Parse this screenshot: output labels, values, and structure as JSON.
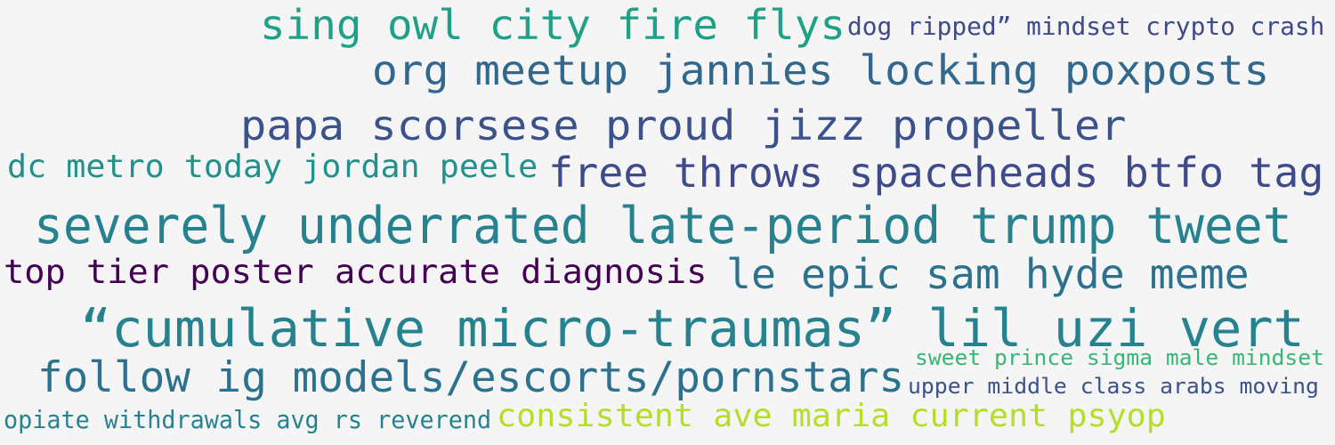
{
  "palette": {
    "background": "#f5f5f5",
    "dark_purple": "#440154",
    "indigo": "#3e4a89",
    "slate_blue": "#3b528b",
    "deep_blue": "#31688e",
    "steel_teal": "#2c728e",
    "teal": "#26828e",
    "sea_teal": "#21918c",
    "jade": "#1fa187",
    "green": "#35b779",
    "lime": "#b5de2b"
  },
  "phrases": [
    {
      "text": "sing owl city fire flys",
      "color": "#1fa187"
    },
    {
      "text": "dog ripped” mindset crypto crash",
      "color": "#3e4a89"
    },
    {
      "text": "org meetup jannies locking poxposts",
      "color": "#31688e"
    },
    {
      "text": "papa scorsese proud jizz propeller",
      "color": "#3b528b"
    },
    {
      "text": "dc metro today jordan peele",
      "color": "#21918c"
    },
    {
      "text": "free throws spaceheads btfo tag",
      "color": "#3e4a89"
    },
    {
      "text": "severely underrated late-period trump tweet",
      "color": "#26828e"
    },
    {
      "text": "top tier poster accurate diagnosis",
      "color": "#440154"
    },
    {
      "text": "le epic sam hyde meme",
      "color": "#2c728e"
    },
    {
      "text": "“cumulative micro-traumas” lil uzi vert",
      "color": "#26828e"
    },
    {
      "text": "follow ig models/escorts/pornstars",
      "color": "#2c728e"
    },
    {
      "text": "sweet prince sigma male mindset",
      "color": "#35b779"
    },
    {
      "text": "upper middle class arabs moving",
      "color": "#3b528b"
    },
    {
      "text": "opiate withdrawals avg rs reverend",
      "color": "#26828e"
    },
    {
      "text": "consistent ave maria current psyop",
      "color": "#b5de2b"
    }
  ]
}
